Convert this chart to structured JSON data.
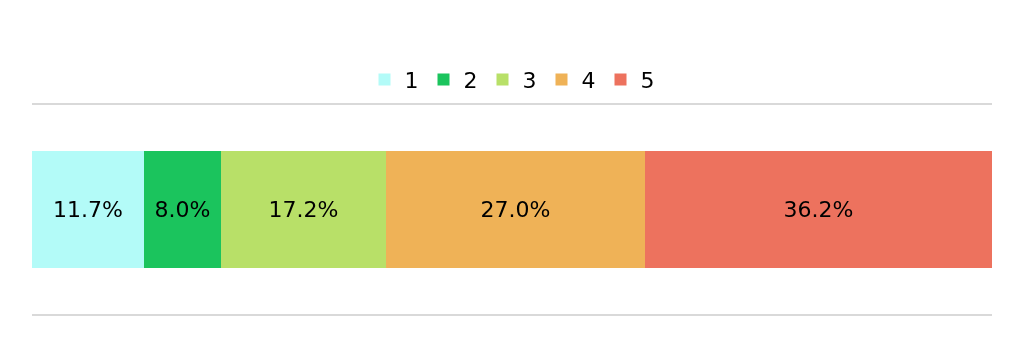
{
  "chart_data": {
    "type": "bar",
    "orientation": "horizontal",
    "stacked": true,
    "categories": [
      null
    ],
    "series": [
      {
        "name": "1",
        "color": "#b3fbf8",
        "values": [
          11.7
        ],
        "value_labels": [
          "11.7%"
        ]
      },
      {
        "name": "2",
        "color": "#1bc45d",
        "values": [
          8.0
        ],
        "value_labels": [
          "8.0%"
        ]
      },
      {
        "name": "3",
        "color": "#b8e068",
        "values": [
          17.2
        ],
        "value_labels": [
          "17.2%"
        ]
      },
      {
        "name": "4",
        "color": "#efb257",
        "values": [
          27.0
        ],
        "value_labels": [
          "27.0%"
        ]
      },
      {
        "name": "5",
        "color": "#ed725e",
        "values": [
          36.2
        ],
        "value_labels": [
          "36.2%"
        ]
      }
    ],
    "legend": "top",
    "tick_labels": false
  }
}
